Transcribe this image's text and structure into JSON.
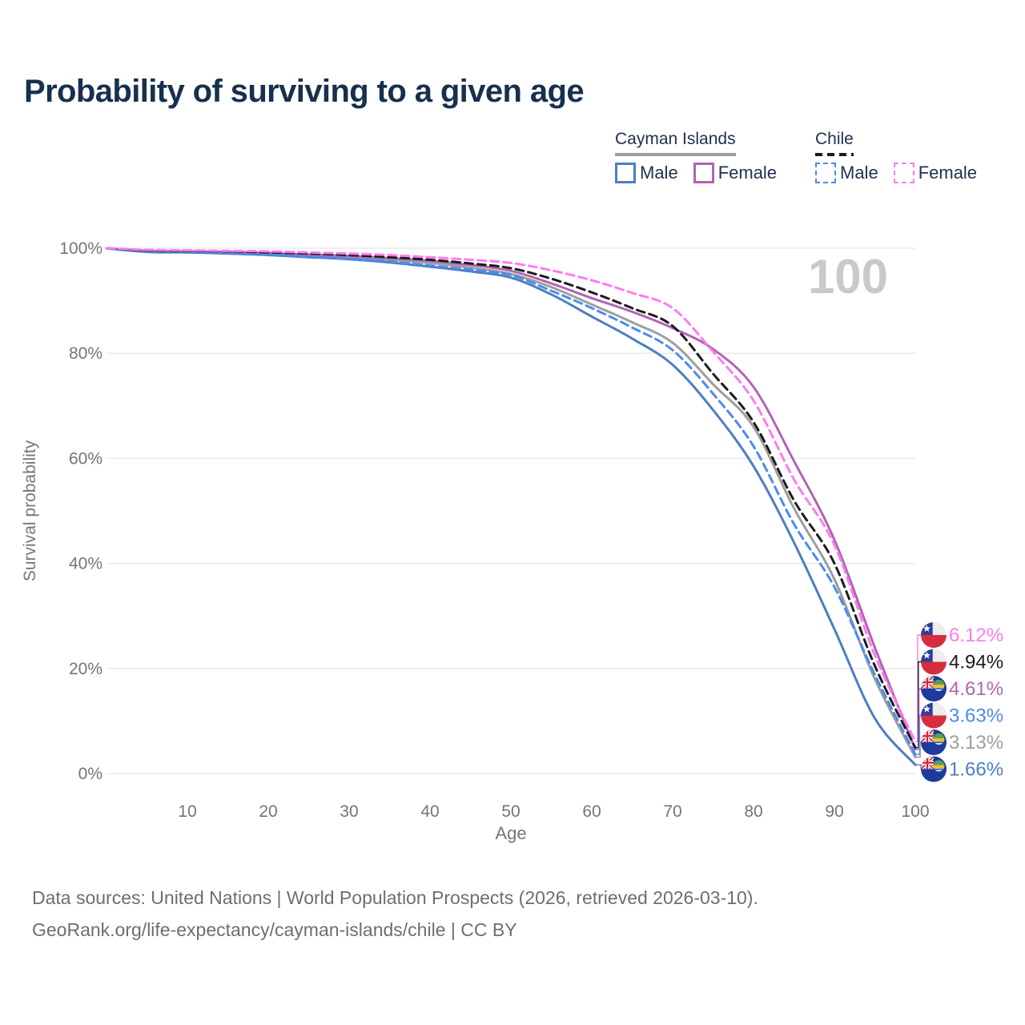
{
  "title": "Probability of surviving to a given age",
  "watermark": "100",
  "legend": {
    "groups": [
      {
        "name": "Cayman Islands",
        "line_style": "solid",
        "line_color": "#9e9e9e",
        "items": [
          {
            "label": "Male",
            "color": "#4d7ec3"
          },
          {
            "label": "Female",
            "color": "#b164b4"
          }
        ]
      },
      {
        "name": "Chile",
        "line_style": "dashed",
        "line_color": "#1c1c1c",
        "items": [
          {
            "label": "Male",
            "color": "#4b8bef"
          },
          {
            "label": "Female",
            "color": "#fc7cf0"
          }
        ]
      }
    ]
  },
  "chart_data": {
    "type": "line",
    "xlabel": "Age",
    "ylabel": "Survival probability",
    "xlim": [
      0,
      100
    ],
    "ylim": [
      0,
      100
    ],
    "grid": true,
    "legend_position": "top-right",
    "x_ticks": [
      10,
      20,
      30,
      40,
      50,
      60,
      70,
      80,
      90,
      100
    ],
    "y_ticks": [
      {
        "value": 0,
        "label": "0%"
      },
      {
        "value": 20,
        "label": "20%"
      },
      {
        "value": 40,
        "label": "40%"
      },
      {
        "value": 60,
        "label": "60%"
      },
      {
        "value": 80,
        "label": "80%"
      },
      {
        "value": 100,
        "label": "100%"
      }
    ],
    "ages": [
      0,
      5,
      10,
      15,
      20,
      25,
      30,
      35,
      40,
      45,
      50,
      55,
      60,
      65,
      70,
      75,
      80,
      85,
      90,
      95,
      100
    ],
    "series": [
      {
        "id": "cayman-total",
        "name": "Cayman Islands",
        "country": "Cayman Islands",
        "sex": "All",
        "color": "#9e9e9e",
        "dashed": false,
        "end_label": "3.13%",
        "end_value": 3.13,
        "values": [
          100,
          99.4,
          99.3,
          99.1,
          98.9,
          98.6,
          98.2,
          97.8,
          97.2,
          96.3,
          95.1,
          92.6,
          89.3,
          85.9,
          82.0,
          74.1,
          66.0,
          50.5,
          37.0,
          18.0,
          3.13
        ]
      },
      {
        "id": "cayman-male",
        "name": "Cayman Islands Male",
        "country": "Cayman Islands",
        "sex": "Male",
        "color": "#4d7ec3",
        "dashed": false,
        "end_label": "1.66%",
        "end_value": 1.66,
        "values": [
          100,
          99.3,
          99.2,
          99.0,
          98.7,
          98.3,
          97.9,
          97.3,
          96.5,
          95.6,
          94.4,
          91.2,
          87.0,
          82.8,
          77.8,
          69.2,
          58.5,
          44.0,
          27.5,
          10.5,
          1.66
        ]
      },
      {
        "id": "cayman-female",
        "name": "Cayman Islands Female",
        "country": "Cayman Islands",
        "sex": "Female",
        "color": "#b164b4",
        "dashed": false,
        "end_label": "4.61%",
        "end_value": 4.61,
        "values": [
          100,
          99.5,
          99.4,
          99.3,
          99.1,
          98.8,
          98.5,
          98.1,
          97.6,
          96.8,
          95.7,
          93.3,
          90.5,
          87.9,
          84.8,
          80.8,
          73.6,
          59.5,
          44.5,
          24.0,
          4.61
        ]
      },
      {
        "id": "chile-male",
        "name": "Chile Male",
        "country": "Chile",
        "sex": "Male",
        "color": "#4b8bef",
        "dashed": true,
        "end_label": "3.63%",
        "end_value": 3.63,
        "values": [
          100,
          99.4,
          99.3,
          99.1,
          98.8,
          98.4,
          98.0,
          97.5,
          96.7,
          95.9,
          94.9,
          91.9,
          88.6,
          84.9,
          80.6,
          72.3,
          62.3,
          47.5,
          35.5,
          18.8,
          3.63
        ]
      },
      {
        "id": "chile-total",
        "name": "Chile",
        "country": "Chile",
        "sex": "All",
        "color": "#1c1c1c",
        "dashed": true,
        "end_label": "4.94%",
        "end_value": 4.94,
        "values": [
          100,
          99.6,
          99.5,
          99.4,
          99.2,
          99.0,
          98.7,
          98.3,
          97.8,
          97.1,
          96.2,
          94.2,
          91.6,
          88.6,
          85.2,
          76.1,
          66.9,
          52.0,
          40.0,
          20.5,
          4.94
        ]
      },
      {
        "id": "chile-female",
        "name": "Chile Female",
        "country": "Chile",
        "sex": "Female",
        "color": "#fc7cf0",
        "dashed": true,
        "end_label": "6.12%",
        "end_value": 6.12,
        "values": [
          100,
          99.7,
          99.6,
          99.5,
          99.4,
          99.2,
          99.0,
          98.7,
          98.3,
          97.8,
          97.2,
          95.8,
          93.9,
          91.5,
          88.6,
          80.3,
          71.0,
          56.0,
          43.5,
          22.5,
          6.12
        ]
      }
    ]
  },
  "footer": {
    "line1": "Data sources: United Nations | World Population Prospects (2026, retrieved 2026-03-10).",
    "line2": "GeoRank.org/life-expectancy/cayman-islands/chile | CC BY"
  }
}
